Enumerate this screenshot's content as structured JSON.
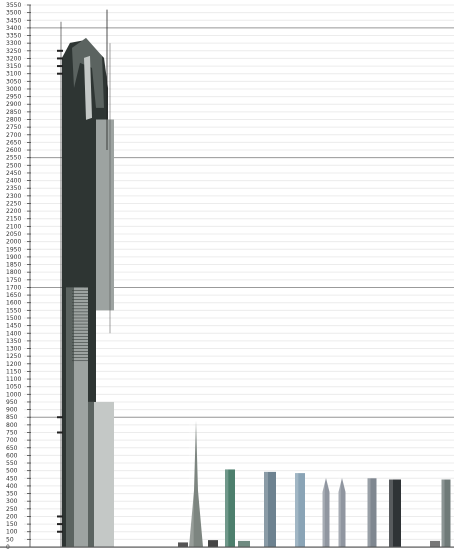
{
  "scale": {
    "unit_step": 50,
    "min": 0,
    "max": 3550,
    "major_lines": [
      850,
      1700,
      2550,
      3400
    ],
    "axis_color": "#444444"
  },
  "mega_tower": {
    "height": 3400,
    "spire_height": 3520,
    "segments": [
      850,
      1700,
      2550,
      3400
    ],
    "colors": {
      "dark": "#2e3533",
      "mid": "#5b6360",
      "light": "#9da3a1",
      "lighter": "#c4c8c6"
    }
  },
  "reference_towers": [
    {
      "id": "burj-khalifa",
      "height": 828,
      "color": "#7d8580"
    },
    {
      "id": "taipei-101",
      "height": 508,
      "color": "#4d7f6d"
    },
    {
      "id": "shanghai-world-financial-center",
      "height": 492,
      "color": "#6d8290"
    },
    {
      "id": "international-commerce-centre",
      "height": 484,
      "color": "#8aa4b6"
    },
    {
      "id": "petronas-tower-1",
      "height": 452,
      "color": "#9096a0"
    },
    {
      "id": "petronas-tower-2",
      "height": 452,
      "color": "#9096a0"
    },
    {
      "id": "zifeng-tower",
      "height": 450,
      "color": "#7f8790"
    },
    {
      "id": "willis-tower",
      "height": 442,
      "color": "#2f3336"
    },
    {
      "id": "kk100",
      "height": 442,
      "color": "#6f7a78"
    }
  ]
}
